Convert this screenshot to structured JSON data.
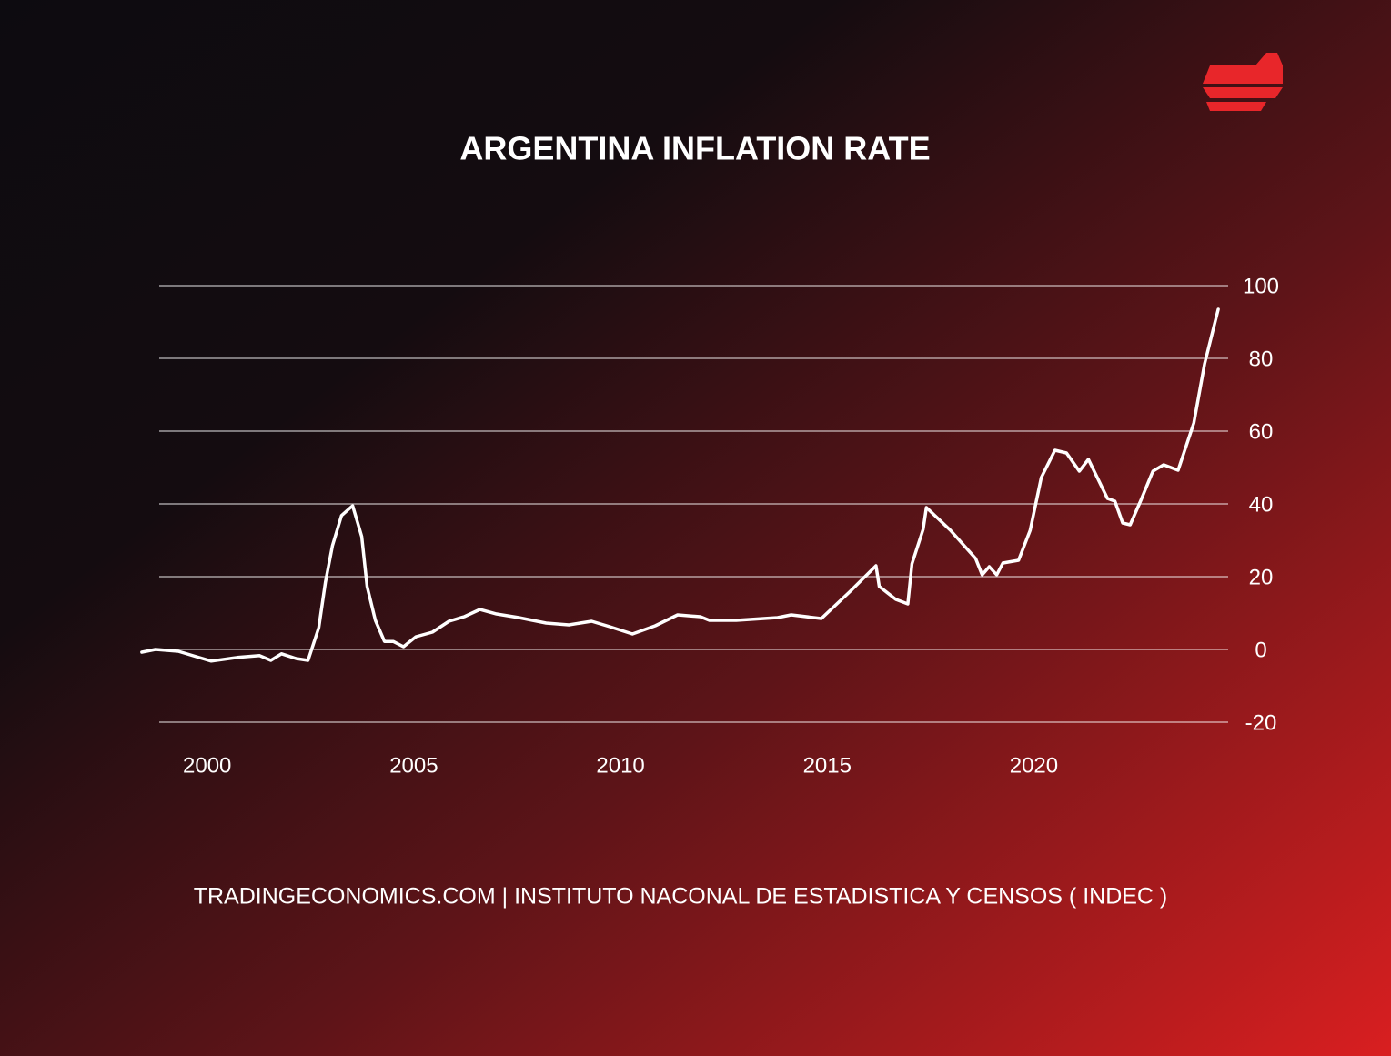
{
  "chart_data": {
    "type": "line",
    "title": "ARGENTINA INFLATION RATE",
    "source": "TRADINGECONOMICS.COM | INSTITUTO NACONAL DE ESTADISTICA Y CENSOS ( INDEC )",
    "color": "#ffffff",
    "x": [
      1998.42,
      1998.75,
      1999.3,
      1999.74,
      2000.1,
      2000.73,
      2001.27,
      2001.54,
      2001.8,
      2002.15,
      2002.44,
      2002.7,
      2002.86,
      2003.03,
      2003.25,
      2003.52,
      2003.74,
      2003.87,
      2004.07,
      2004.29,
      2004.5,
      2004.75,
      2005.05,
      2005.45,
      2005.85,
      2006.22,
      2006.6,
      2007.0,
      2007.54,
      2008.2,
      2008.75,
      2009.3,
      2009.74,
      2010.29,
      2010.84,
      2011.38,
      2011.93,
      2012.15,
      2012.8,
      2013.8,
      2014.13,
      2014.86,
      2015.56,
      2016.18,
      2016.26,
      2016.66,
      2016.95,
      2017.05,
      2017.32,
      2017.4,
      2017.98,
      2018.59,
      2018.75,
      2018.92,
      2019.1,
      2019.25,
      2019.63,
      2019.91,
      2020.18,
      2020.51,
      2020.79,
      2021.1,
      2021.32,
      2021.78,
      2021.96,
      2022.15,
      2022.33,
      2022.59,
      2022.88,
      2023.14,
      2023.49,
      2023.87,
      2024.13,
      2024.46
    ],
    "values": [
      -0.75,
      0,
      -0.5,
      -2,
      -3.2,
      -2.2,
      -1.7,
      -3,
      -1.2,
      -2.5,
      -3,
      6,
      18.5,
      28.5,
      36.8,
      39.5,
      31,
      17.3,
      8,
      2.2,
      2.2,
      0.75,
      3.5,
      4.75,
      7.75,
      9,
      11,
      9.75,
      8.75,
      7.25,
      6.75,
      7.75,
      6.25,
      4.25,
      6.5,
      9.5,
      9,
      8,
      8,
      8.75,
      9.5,
      8.5,
      16,
      23,
      17.3,
      13.75,
      12.5,
      23.5,
      33,
      39,
      32.75,
      25,
      20.5,
      22.75,
      20.5,
      23.75,
      24.5,
      32.75,
      47.25,
      54.75,
      54,
      49,
      52.25,
      41.5,
      40.75,
      34.75,
      34.25,
      41,
      49,
      50.75,
      49.25,
      62.25,
      78.5,
      93.5
    ],
    "xlim": [
      1998.4,
      2024.7
    ],
    "xticks": [
      2000,
      2005,
      2010,
      2015,
      2020
    ],
    "ylim": [
      -20,
      100
    ],
    "yticks": [
      -20,
      0,
      20,
      40,
      60,
      80,
      100
    ],
    "grid": true
  }
}
